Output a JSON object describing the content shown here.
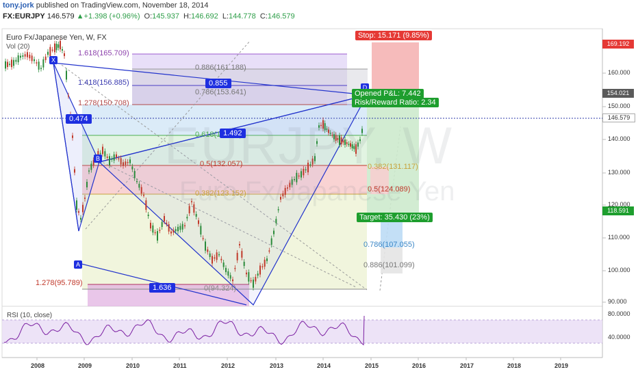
{
  "header": {
    "author": "tony.jork",
    "published_text": "published on TradingView.com, November 18, 2014",
    "symbol": "FX:EURJPY",
    "last": "146.579",
    "change_arrow": "▲",
    "change": "+1.398 (+0.96%)",
    "o_label": "O:",
    "o_value": "145.937",
    "h_label": "H:",
    "h_value": "146.692",
    "l_label": "L:",
    "l_value": "144.778",
    "c_label": "C:",
    "c_value": "146.579"
  },
  "chart": {
    "title": "Euro Fx/Japanese Yen, W, FX",
    "volume_label": "Vol (20)",
    "watermark_symbol": "EURJPY, W",
    "watermark_name": "Euro Fx/Japanese Yen",
    "y_ticks": [
      "160.000",
      "150.000",
      "140.000",
      "130.000",
      "120.000",
      "110.000",
      "100.000",
      "90.000"
    ],
    "x_ticks": [
      "2008",
      "2009",
      "2010",
      "2011",
      "2012",
      "2013",
      "2014",
      "2015",
      "2016",
      "2017",
      "2018",
      "2019"
    ],
    "price_badges": {
      "stop": "169.192",
      "d_level": "154.021",
      "last": "146.579",
      "target": "118.591"
    },
    "fib_labels": {
      "f1618": "1.618(165.709)",
      "f0886": "0.886(161.188)",
      "f1418": "1.418(156.885)",
      "f0786": "0.786(153.641)",
      "f1278": "1.278(150.708)",
      "f0618": "0.618(141.3?)",
      "f05": "0.5(132.057)",
      "f0382": "0.382(123.152)",
      "f0": "0(94.324)",
      "f1278b": "1.278(95.789)",
      "r0382": "0.382(131.117)",
      "r05": "0.5(124.089)",
      "r0786": "0.786(107.055)",
      "r0886": "0.886(101.099)"
    },
    "pattern_points": {
      "x": "X",
      "a": "A",
      "b": "B",
      "d": "D"
    },
    "pattern_values": {
      "xb": "0.474",
      "ac": "1.492",
      "xd": "0.855",
      "bd": "1.636"
    },
    "trade": {
      "stop": "Stop: 15.171 (9.85%)",
      "open_pl": "Opened P&L: 7.442",
      "risk_reward": "Risk/Reward Ratio: 2.34",
      "target": "Target: 35.430 (23%)"
    }
  },
  "rsi": {
    "label": "RSI (10, close)",
    "y_ticks": [
      "80.0000",
      "40.0000"
    ]
  },
  "colors": {
    "bull": "#2a8a3a",
    "bear": "#c0392b",
    "pattern": "#2233cc",
    "stop": "#e53935",
    "target": "#1e9e2e",
    "rsi_line": "#7b1fa2",
    "rsi_band": "#e9dcf5"
  }
}
